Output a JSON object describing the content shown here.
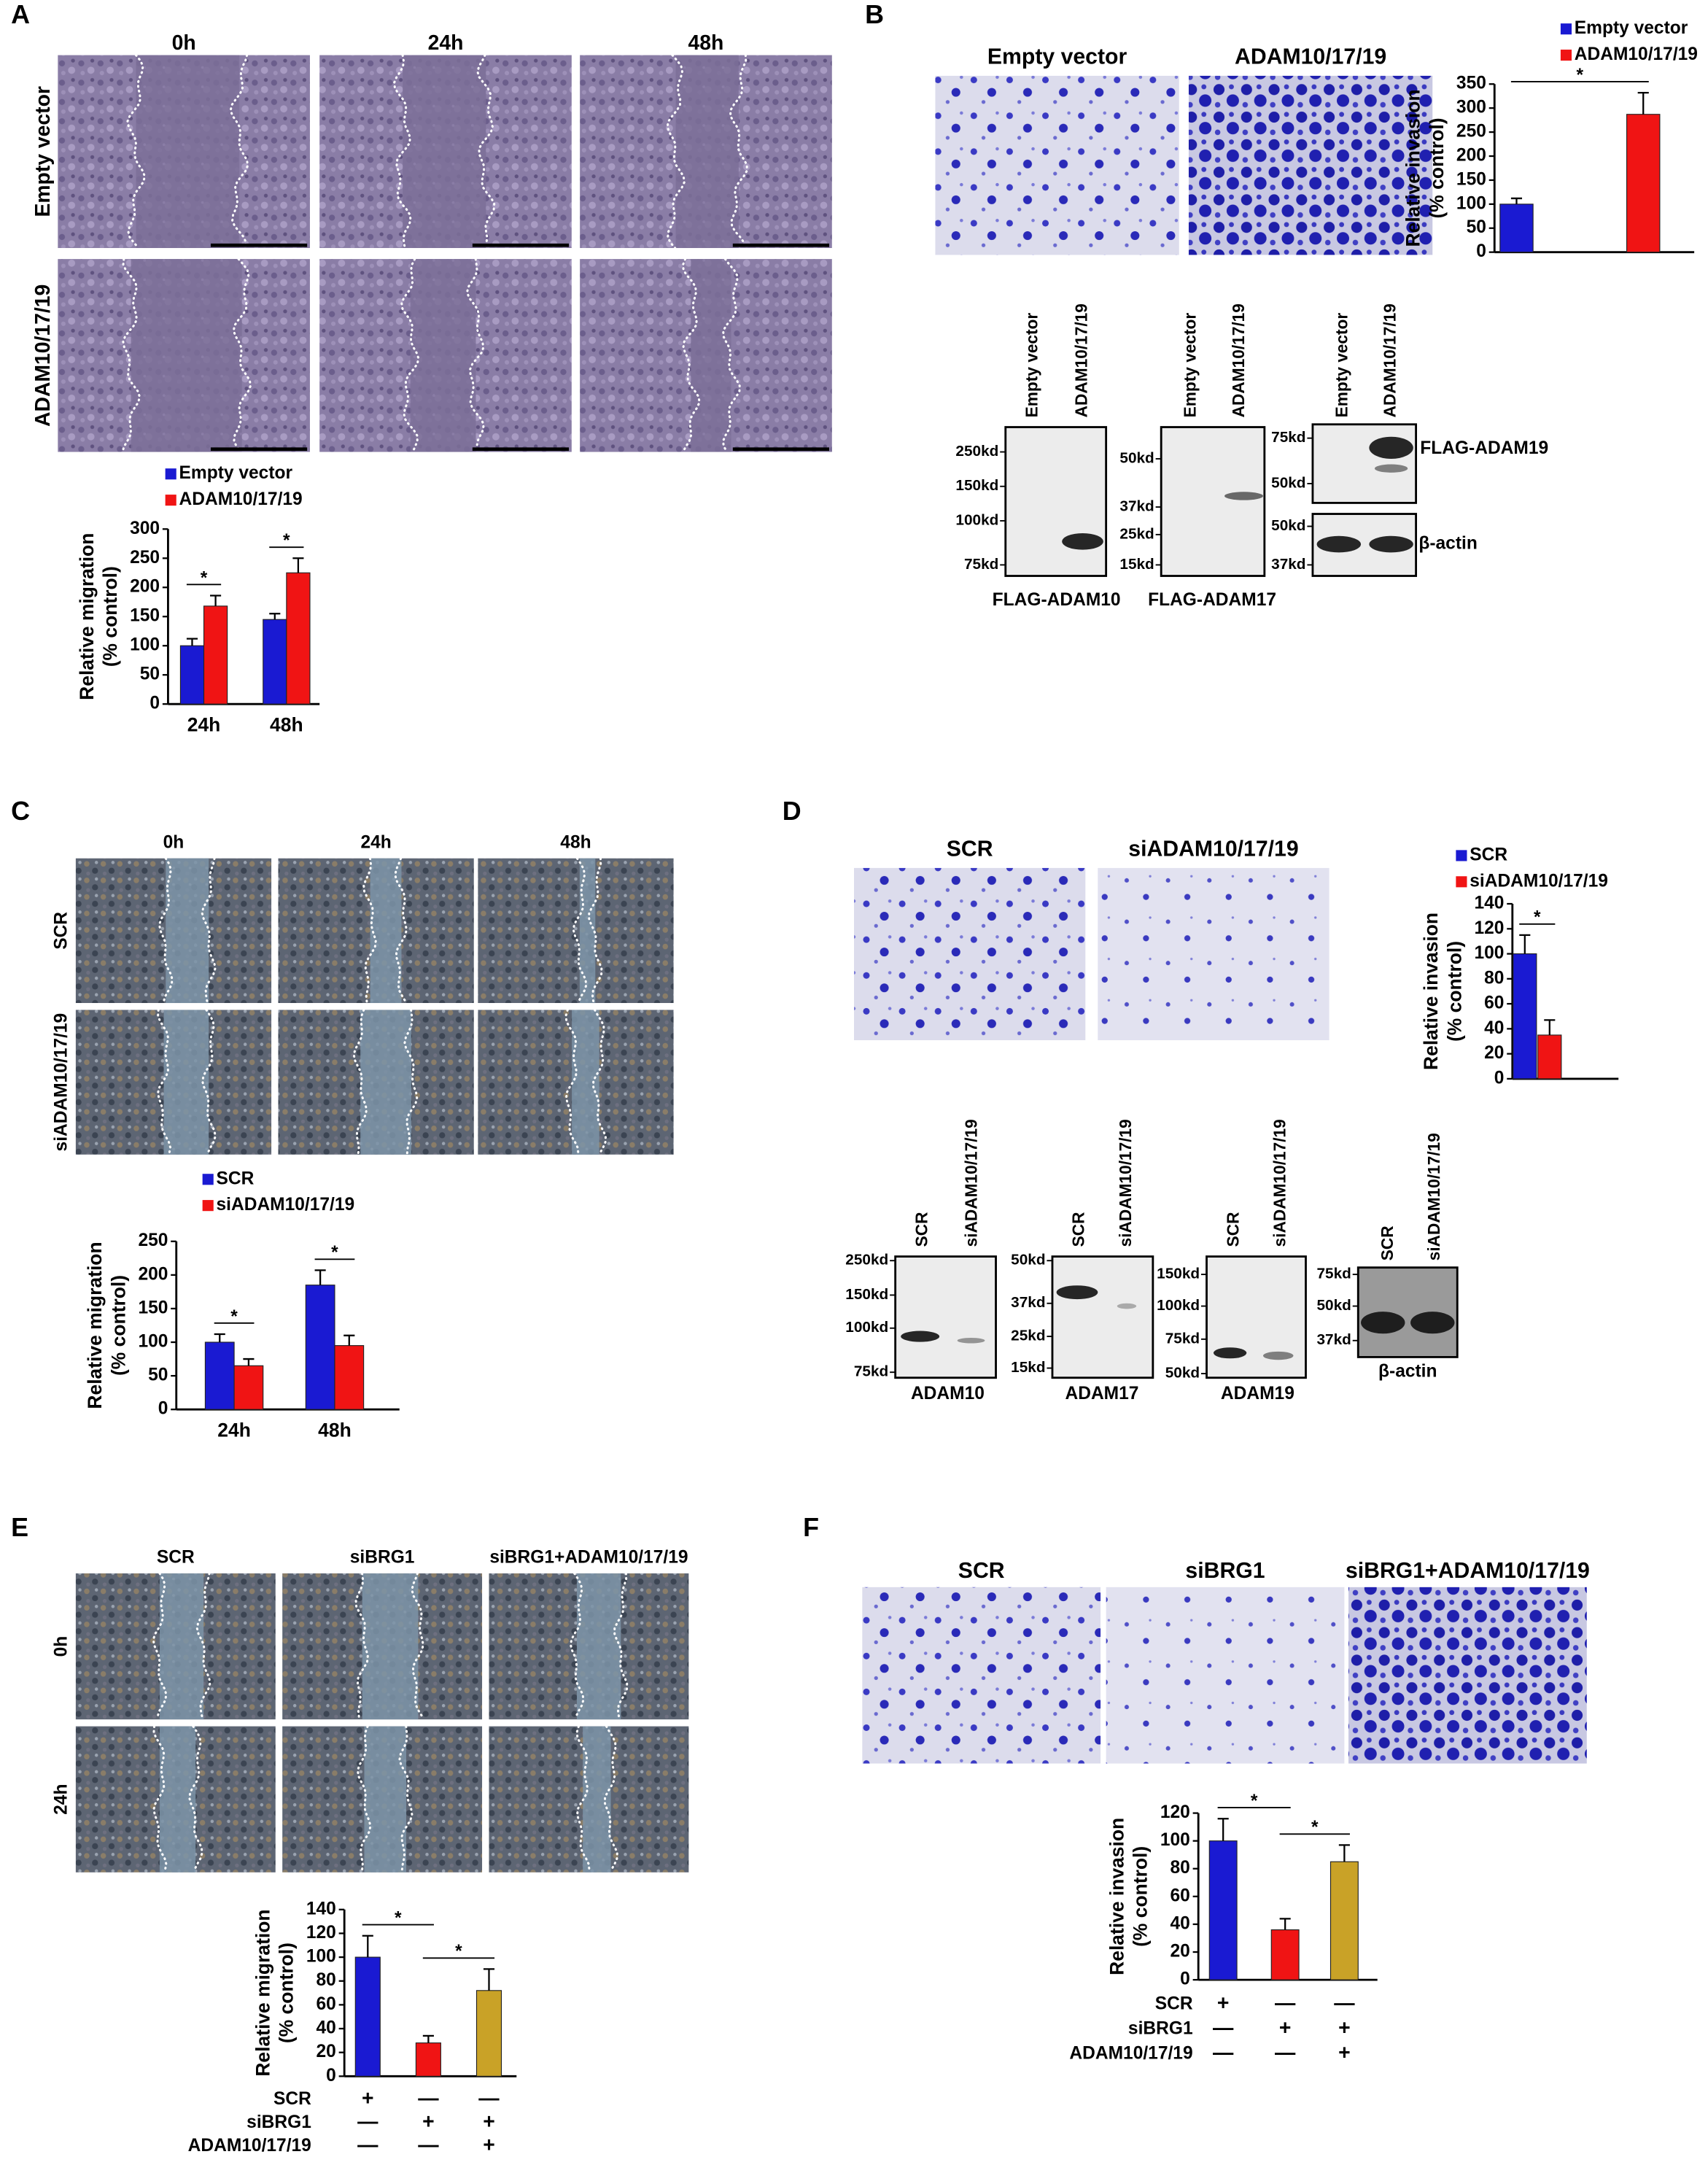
{
  "panel_labels": [
    "A",
    "B",
    "C",
    "D",
    "E",
    "F"
  ],
  "scratch_A": {
    "columns": [
      "0h",
      "24h",
      "48h"
    ],
    "rows": [
      "Empty vector",
      "ADAM10/17/19"
    ]
  },
  "invasion_B": {
    "columns": [
      "Empty vector",
      "ADAM10/17/19"
    ]
  },
  "blot_B": {
    "lanes": [
      "Empty vector",
      "ADAM10/17/19"
    ],
    "blots": [
      {
        "markers": [
          "250kd",
          "150kd",
          "100kd",
          "75kd"
        ],
        "label": "FLAG-ADAM10"
      },
      {
        "markers": [
          "50kd",
          "37kd",
          "25kd",
          "15kd"
        ],
        "label": "FLAG-ADAM17"
      },
      {
        "markers": [
          "75kd",
          "50kd"
        ],
        "label": "FLAG-ADAM19"
      },
      {
        "markers": [
          "50kd",
          "37kd"
        ],
        "label": "β-actin"
      }
    ]
  },
  "scratch_C": {
    "columns": [
      "0h",
      "24h",
      "48h"
    ],
    "rows": [
      "SCR",
      "siADAM10/17/19"
    ]
  },
  "invasion_D": {
    "columns": [
      "SCR",
      "siADAM10/17/19"
    ]
  },
  "blot_D": {
    "lanes": [
      "SCR",
      "siADAM10/17/19"
    ],
    "blots": [
      {
        "markers": [
          "250kd",
          "150kd",
          "100kd",
          "75kd"
        ],
        "label": "ADAM10"
      },
      {
        "markers": [
          "50kd",
          "37kd",
          "25kd",
          "15kd"
        ],
        "label": "ADAM17"
      },
      {
        "markers": [
          "150kd",
          "100kd",
          "75kd",
          "50kd"
        ],
        "label": "ADAM19"
      },
      {
        "markers": [
          "75kd",
          "50kd",
          "37kd"
        ],
        "label": "β-actin"
      }
    ]
  },
  "scratch_E": {
    "columns": [
      "SCR",
      "siBRG1",
      "siBRG1+ADAM10/17/19"
    ],
    "rows": [
      "0h",
      "24h"
    ]
  },
  "invasion_F": {
    "columns": [
      "SCR",
      "siBRG1",
      "siBRG1+ADAM10/17/19"
    ]
  },
  "chart_data": [
    {
      "type": "bar",
      "ylabel": [
        "Relative migration",
        "(% control)"
      ],
      "categories": [
        "24h",
        "48h"
      ],
      "series": [
        {
          "name": "Empty vector",
          "color": "#1a1ad2",
          "values": [
            100,
            145
          ],
          "errors": [
            12,
            10
          ]
        },
        {
          "name": "ADAM10/17/19",
          "color": "#f01414",
          "values": [
            168,
            225
          ],
          "errors": [
            18,
            25
          ]
        }
      ],
      "ylim": [
        0,
        300
      ],
      "yticks": [
        0,
        50,
        100,
        150,
        200,
        250,
        300
      ],
      "annotations": [
        "*",
        "*"
      ]
    },
    {
      "type": "bar",
      "ylabel": [
        "Relative invasion",
        "(% control)"
      ],
      "categories": [
        null
      ],
      "series": [
        {
          "name": "Empty vector",
          "color": "#1a1ad2",
          "values": [
            100
          ],
          "errors": [
            12
          ]
        },
        {
          "name": "ADAM10/17/19",
          "color": "#f01414",
          "values": [
            287
          ],
          "errors": [
            45
          ]
        }
      ],
      "ylim": [
        0,
        350
      ],
      "yticks": [
        0,
        50,
        100,
        150,
        200,
        250,
        300,
        350
      ],
      "annotations": [
        "*"
      ]
    },
    {
      "type": "bar",
      "ylabel": [
        "Relative migration",
        "(% control)"
      ],
      "categories": [
        "24h",
        "48h"
      ],
      "series": [
        {
          "name": "SCR",
          "color": "#1a1ad2",
          "values": [
            100,
            185
          ],
          "errors": [
            12,
            22
          ]
        },
        {
          "name": "siADAM10/17/19",
          "color": "#f01414",
          "values": [
            65,
            95
          ],
          "errors": [
            10,
            15
          ]
        }
      ],
      "ylim": [
        0,
        250
      ],
      "yticks": [
        0,
        50,
        100,
        150,
        200,
        250
      ],
      "annotations": [
        "*",
        "*"
      ]
    },
    {
      "type": "bar",
      "ylabel": [
        "Relative invasion",
        "(% control)"
      ],
      "categories": [
        null
      ],
      "series": [
        {
          "name": "SCR",
          "color": "#1a1ad2",
          "values": [
            100
          ],
          "errors": [
            15
          ]
        },
        {
          "name": "siADAM10/17/19",
          "color": "#f01414",
          "values": [
            35
          ],
          "errors": [
            12
          ]
        }
      ],
      "ylim": [
        0,
        140
      ],
      "yticks": [
        0,
        20,
        40,
        60,
        80,
        100,
        120,
        140
      ],
      "annotations": [
        "*"
      ]
    },
    {
      "type": "bar",
      "ylabel": [
        "Relative migration",
        "(% control)"
      ],
      "categories": [
        null,
        null,
        null
      ],
      "values": [
        100,
        28,
        72
      ],
      "errors": [
        18,
        6,
        18
      ],
      "colors": [
        "#1a1ad2",
        "#f01414",
        "#c9a227"
      ],
      "ylim": [
        0,
        140
      ],
      "yticks": [
        0,
        20,
        40,
        60,
        80,
        100,
        120,
        140
      ],
      "annotations": [
        "*",
        "*"
      ],
      "conditions": [
        {
          "name": "SCR",
          "signs": [
            "+",
            "—",
            "—"
          ]
        },
        {
          "name": "siBRG1",
          "signs": [
            "—",
            "+",
            "+"
          ]
        },
        {
          "name": "ADAM10/17/19",
          "signs": [
            "—",
            "—",
            "+"
          ]
        }
      ]
    },
    {
      "type": "bar",
      "ylabel": [
        "Relative invasion",
        "(% control)"
      ],
      "categories": [
        null,
        null,
        null
      ],
      "values": [
        100,
        36,
        85
      ],
      "errors": [
        16,
        8,
        12
      ],
      "colors": [
        "#1a1ad2",
        "#f01414",
        "#c9a227"
      ],
      "ylim": [
        0,
        120
      ],
      "yticks": [
        0,
        20,
        40,
        60,
        80,
        100,
        120
      ],
      "annotations": [
        "*",
        "*"
      ],
      "conditions": [
        {
          "name": "SCR",
          "signs": [
            "+",
            "—",
            "—"
          ]
        },
        {
          "name": "siBRG1",
          "signs": [
            "—",
            "+",
            "+"
          ]
        },
        {
          "name": "ADAM10/17/19",
          "signs": [
            "—",
            "—",
            "+"
          ]
        }
      ]
    }
  ]
}
